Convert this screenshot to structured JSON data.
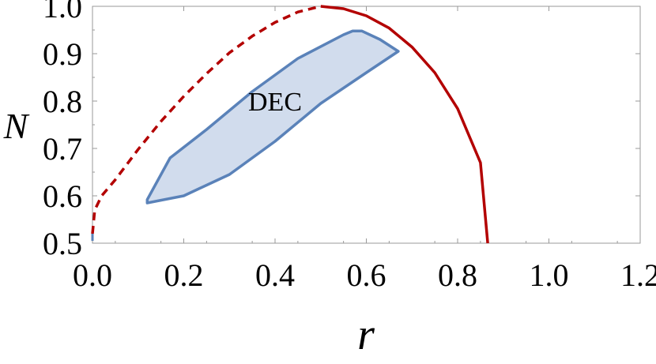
{
  "chart_data": {
    "type": "line",
    "xlabel": "r",
    "ylabel": "N",
    "xlim": [
      0.0,
      1.2
    ],
    "ylim": [
      0.5,
      1.0
    ],
    "x_ticks": [
      "0.0",
      "0.2",
      "0.4",
      "0.6",
      "0.8",
      "1.0",
      "1.2"
    ],
    "y_ticks": [
      "0.5",
      "0.6",
      "0.7",
      "0.8",
      "0.9",
      "1.0"
    ],
    "grid": false,
    "colors": {
      "curve": "#b30000",
      "region_stroke": "#5a82b9",
      "region_fill": "#c9d6ea"
    },
    "series": [
      {
        "style": "dashed",
        "x": [
          0.0,
          0.005,
          0.01,
          0.02,
          0.05,
          0.1,
          0.15,
          0.2,
          0.25,
          0.3,
          0.35,
          0.4,
          0.45,
          0.5
        ],
        "y": [
          0.52,
          0.57,
          0.58,
          0.6,
          0.634,
          0.698,
          0.757,
          0.81,
          0.858,
          0.902,
          0.937,
          0.966,
          0.988,
          1.0
        ]
      },
      {
        "style": "solid",
        "x": [
          0.5,
          0.55,
          0.6,
          0.65,
          0.7,
          0.75,
          0.8,
          0.85,
          0.866
        ],
        "y": [
          1.0,
          0.995,
          0.98,
          0.954,
          0.914,
          0.86,
          0.784,
          0.67,
          0.5
        ]
      }
    ],
    "regions": [
      {
        "x": [
          0.12,
          0.17,
          0.25,
          0.35,
          0.45,
          0.55,
          0.57,
          0.59,
          0.63,
          0.67,
          0.6,
          0.5,
          0.4,
          0.3,
          0.2,
          0.12,
          0.12
        ],
        "y": [
          0.592,
          0.68,
          0.74,
          0.82,
          0.89,
          0.94,
          0.948,
          0.948,
          0.93,
          0.905,
          0.86,
          0.795,
          0.715,
          0.645,
          0.6,
          0.585,
          0.592
        ]
      }
    ],
    "annotations": [
      {
        "text": "DEC",
        "x": 0.4,
        "y": 0.78
      }
    ]
  }
}
